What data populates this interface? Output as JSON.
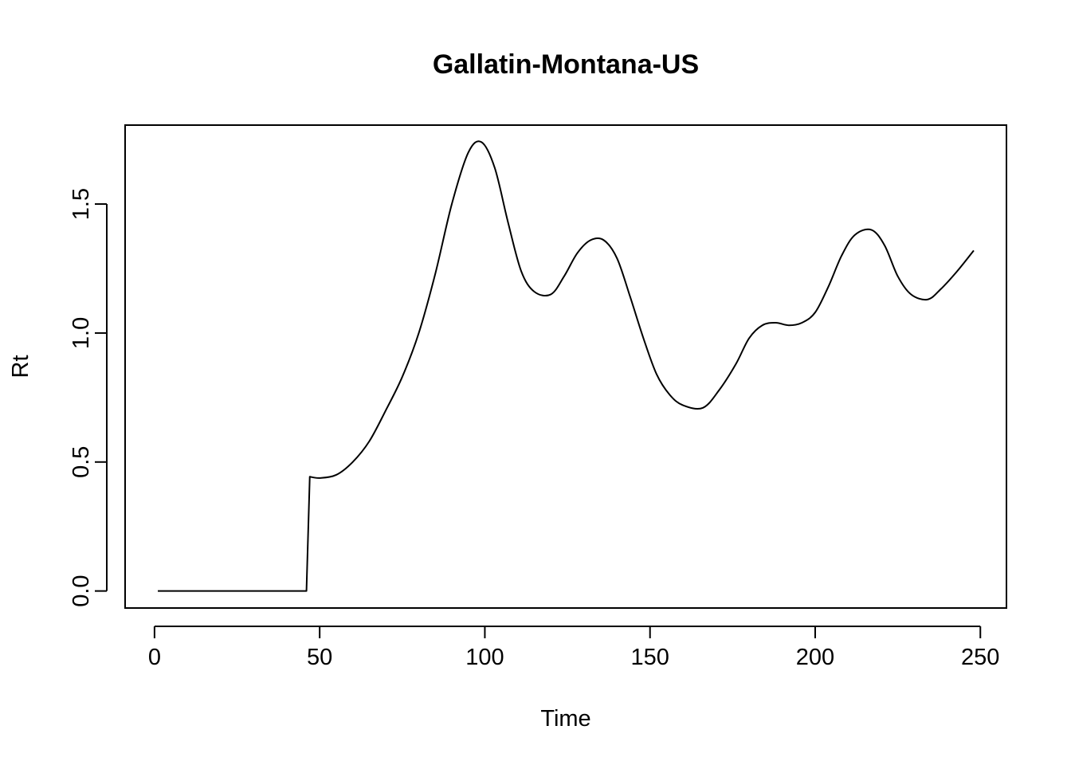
{
  "chart_data": {
    "type": "line",
    "title": "Gallatin-Montana-US",
    "xlabel": "Time",
    "ylabel": "Rt",
    "xlim": [
      -8.9,
      257.9
    ],
    "ylim": [
      -0.066,
      1.806
    ],
    "xticks": [
      {
        "value": 0,
        "label": "0"
      },
      {
        "value": 50,
        "label": "50"
      },
      {
        "value": 100,
        "label": "100"
      },
      {
        "value": 150,
        "label": "150"
      },
      {
        "value": 200,
        "label": "200"
      },
      {
        "value": 250,
        "label": "250"
      }
    ],
    "yticks": [
      {
        "value": 0.0,
        "label": "0.0"
      },
      {
        "value": 0.5,
        "label": "0.5"
      },
      {
        "value": 1.0,
        "label": "1.0"
      },
      {
        "value": 1.5,
        "label": "1.5"
      }
    ],
    "grid": false,
    "series": [
      {
        "color": "#000000",
        "x": [
          1,
          46,
          47,
          50,
          55,
          60,
          65,
          70,
          75,
          80,
          85,
          90,
          95,
          99,
          103,
          107,
          111,
          115,
          120,
          124,
          128,
          132,
          136,
          140,
          144,
          148,
          152,
          156,
          160,
          166,
          171,
          176,
          180,
          184,
          188,
          192,
          196,
          200,
          204,
          208,
          212,
          217,
          221,
          225,
          229,
          234,
          238,
          243,
          248
        ],
        "y": [
          0,
          0,
          0.443,
          0.438,
          0.45,
          0.5,
          0.58,
          0.7,
          0.83,
          1.0,
          1.23,
          1.5,
          1.7,
          1.74,
          1.64,
          1.43,
          1.24,
          1.16,
          1.15,
          1.22,
          1.31,
          1.36,
          1.36,
          1.29,
          1.14,
          0.98,
          0.84,
          0.76,
          0.72,
          0.71,
          0.78,
          0.88,
          0.98,
          1.03,
          1.04,
          1.03,
          1.04,
          1.08,
          1.18,
          1.3,
          1.38,
          1.4,
          1.34,
          1.22,
          1.15,
          1.13,
          1.17,
          1.24,
          1.32
        ]
      }
    ]
  }
}
